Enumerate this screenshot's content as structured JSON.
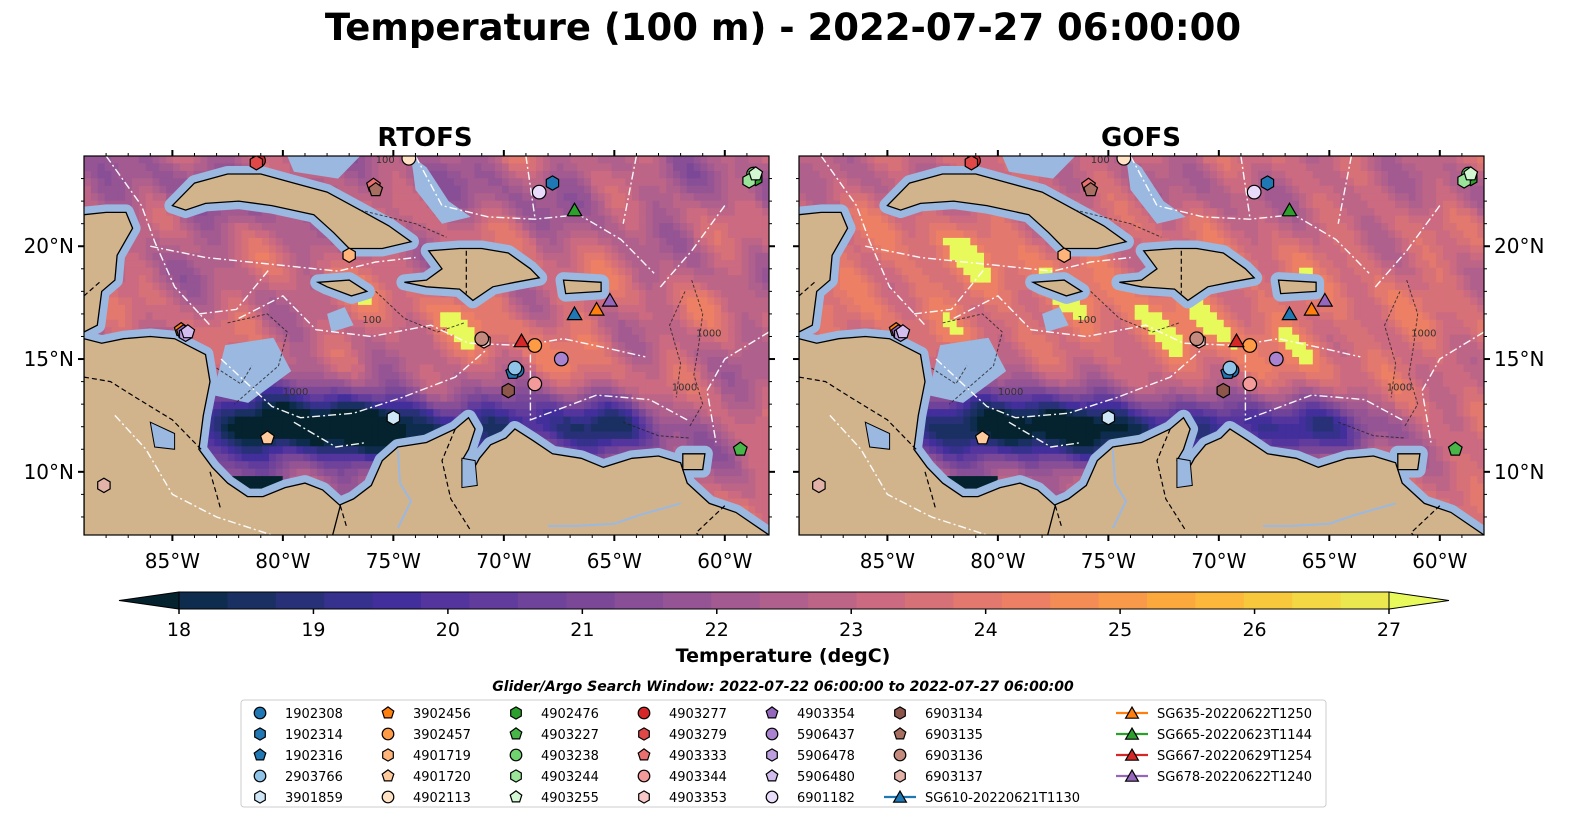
{
  "title": "Temperature (100 m) - 2022-07-27 06:00:00",
  "panels": [
    {
      "title": "RTOFS",
      "model": "rtofs"
    },
    {
      "title": "GOFS",
      "model": "gofs"
    }
  ],
  "axes": {
    "lon_ticks": [
      -85,
      -80,
      -75,
      -70,
      -65,
      -60
    ],
    "lon_tick_labels": [
      "85°W",
      "80°W",
      "75°W",
      "70°W",
      "65°W",
      "60°W"
    ],
    "lat_ticks": [
      10,
      15,
      20
    ],
    "lat_tick_labels": [
      "10°N",
      "15°N",
      "20°N"
    ],
    "lon_range": [
      -89,
      -58
    ],
    "lat_range": [
      7.2,
      24.0
    ]
  },
  "colorbar": {
    "label": "Temperature (degC)",
    "min": 18,
    "max": 27,
    "step": 0.5,
    "ticks": [
      18,
      19,
      20,
      21,
      22,
      23,
      24,
      25,
      26,
      27
    ],
    "tick_labels": [
      "18",
      "19",
      "20",
      "21",
      "22",
      "23",
      "24",
      "25",
      "26",
      "27"
    ],
    "extend": "both",
    "colormap": "thermal",
    "colors": [
      "#04232e",
      "#0e2c4d",
      "#1a3062",
      "#283177",
      "#35318c",
      "#432f9b",
      "#53359d",
      "#613c9c",
      "#6f439a",
      "#7b4898",
      "#884f97",
      "#955494",
      "#a35a91",
      "#b0608c",
      "#bd6587",
      "#cb6a80",
      "#d77178",
      "#e3786f",
      "#ed8064",
      "#f48c56",
      "#f89a49",
      "#fba83d",
      "#fbb83a",
      "#f8c83c",
      "#f3d843",
      "#ebe84f",
      "#e8fa5b"
    ]
  },
  "search_window": "Glider/Argo Search Window: 2022-07-22 06:00:00 to 2022-07-27 06:00:00",
  "map_colors": {
    "land": "#d2b48c",
    "shelf": "#9ab8e0",
    "coast": "#000000",
    "eez": "#ffffff"
  },
  "contour_labels": [
    "100",
    "1000"
  ],
  "legend": {
    "argo": [
      {
        "id": "1902308",
        "marker": "circle",
        "color": "#1f77b4"
      },
      {
        "id": "1902314",
        "marker": "hexagon",
        "color": "#1f77b4"
      },
      {
        "id": "1902316",
        "marker": "pentagon",
        "color": "#1f77b4"
      },
      {
        "id": "2903766",
        "marker": "circle",
        "color": "#8fc3e8"
      },
      {
        "id": "3901859",
        "marker": "hexagon",
        "color": "#cfe6f6"
      },
      {
        "id": "3902456",
        "marker": "pentagon",
        "color": "#ff7f0e"
      },
      {
        "id": "3902457",
        "marker": "circle",
        "color": "#ff9a45"
      },
      {
        "id": "4901719",
        "marker": "hexagon",
        "color": "#ffb47a"
      },
      {
        "id": "4901720",
        "marker": "pentagon",
        "color": "#ffcb9c"
      },
      {
        "id": "4902113",
        "marker": "circle",
        "color": "#ffe2c4"
      },
      {
        "id": "4902476",
        "marker": "hexagon",
        "color": "#2ca02c"
      },
      {
        "id": "4903227",
        "marker": "pentagon",
        "color": "#48b548"
      },
      {
        "id": "4903238",
        "marker": "circle",
        "color": "#6fd36f"
      },
      {
        "id": "4903244",
        "marker": "hexagon",
        "color": "#9be59b"
      },
      {
        "id": "4903255",
        "marker": "pentagon",
        "color": "#d2f7d2"
      },
      {
        "id": "4903277",
        "marker": "circle",
        "color": "#d62728"
      },
      {
        "id": "4903279",
        "marker": "hexagon",
        "color": "#e04848"
      },
      {
        "id": "4903333",
        "marker": "pentagon",
        "color": "#ea6f6f"
      },
      {
        "id": "4903344",
        "marker": "circle",
        "color": "#f39a9a"
      },
      {
        "id": "4903353",
        "marker": "hexagon",
        "color": "#f8c7c7"
      },
      {
        "id": "4903354",
        "marker": "pentagon",
        "color": "#9467bd"
      },
      {
        "id": "5906437",
        "marker": "circle",
        "color": "#a983d0"
      },
      {
        "id": "5906478",
        "marker": "hexagon",
        "color": "#bd9fe0"
      },
      {
        "id": "5906480",
        "marker": "pentagon",
        "color": "#d3bdef"
      },
      {
        "id": "6901182",
        "marker": "circle",
        "color": "#e9dcfb"
      },
      {
        "id": "6903134",
        "marker": "hexagon",
        "color": "#8c564b"
      },
      {
        "id": "6903135",
        "marker": "pentagon",
        "color": "#a86e62"
      },
      {
        "id": "6903136",
        "marker": "circle",
        "color": "#c48a7e"
      },
      {
        "id": "6903137",
        "marker": "hexagon",
        "color": "#e2b2a8"
      }
    ],
    "gliders": [
      {
        "id": "SG610-20220621T1130",
        "color": "#1f77b4"
      },
      {
        "id": "SG635-20220622T1250",
        "color": "#ff7f0e"
      },
      {
        "id": "SG665-20220623T1144",
        "color": "#2ca02c"
      },
      {
        "id": "SG667-20220629T1254",
        "color": "#d62728"
      },
      {
        "id": "SG678-20220622T1240",
        "color": "#9467bd"
      }
    ]
  },
  "chart_data": {
    "type": "heatmap",
    "title": "Temperature (100 m) - 2022-07-27 06:00:00",
    "subplots": [
      "RTOFS",
      "GOFS"
    ],
    "variable": "Temperature (100 m)",
    "units": "degC",
    "color_range": [
      18,
      27
    ],
    "xlim": [
      -89,
      -58
    ],
    "ylim": [
      7.2,
      24.0
    ],
    "argo_floats": [
      {
        "id": "1902308",
        "lon": -69.4,
        "lat": 14.5
      },
      {
        "id": "1902314",
        "lon": -67.8,
        "lat": 22.8
      },
      {
        "id": "1902316",
        "lon": -69.6,
        "lat": 14.4
      },
      {
        "id": "2903766",
        "lon": -69.5,
        "lat": 14.6
      },
      {
        "id": "3901859",
        "lon": -75.0,
        "lat": 12.4
      },
      {
        "id": "3902456",
        "lon": -84.6,
        "lat": 16.3
      },
      {
        "id": "3902457",
        "lon": -68.6,
        "lat": 15.6
      },
      {
        "id": "4901719",
        "lon": -77.0,
        "lat": 19.6
      },
      {
        "id": "4901720",
        "lon": -80.7,
        "lat": 11.5
      },
      {
        "id": "4902113",
        "lon": -74.3,
        "lat": 23.9
      },
      {
        "id": "4902476",
        "lon": -58.6,
        "lat": 23.0
      },
      {
        "id": "4903227",
        "lon": -59.3,
        "lat": 11.0
      },
      {
        "id": "4903238",
        "lon": -58.7,
        "lat": 23.2
      },
      {
        "id": "4903244",
        "lon": -58.9,
        "lat": 22.9
      },
      {
        "id": "4903255",
        "lon": -58.6,
        "lat": 23.2
      },
      {
        "id": "4903277",
        "lon": -81.1,
        "lat": 23.8
      },
      {
        "id": "4903279",
        "lon": -81.2,
        "lat": 23.7
      },
      {
        "id": "4903333",
        "lon": -75.9,
        "lat": 22.7
      },
      {
        "id": "4903344",
        "lon": -68.6,
        "lat": 13.9
      },
      {
        "id": "4903353",
        "lon": -70.9,
        "lat": 15.8
      },
      {
        "id": "4903354",
        "lon": -84.5,
        "lat": 16.2
      },
      {
        "id": "5906437",
        "lon": -67.4,
        "lat": 15.0
      },
      {
        "id": "5906478",
        "lon": -84.4,
        "lat": 16.1
      },
      {
        "id": "5906480",
        "lon": -84.3,
        "lat": 16.2
      },
      {
        "id": "6901182",
        "lon": -68.4,
        "lat": 22.4
      },
      {
        "id": "6903134",
        "lon": -69.8,
        "lat": 13.6
      },
      {
        "id": "6903135",
        "lon": -75.8,
        "lat": 22.5
      },
      {
        "id": "6903136",
        "lon": -71.0,
        "lat": 15.9
      },
      {
        "id": "6903137",
        "lon": -88.1,
        "lat": 9.4
      }
    ],
    "gliders": [
      {
        "id": "SG610-20220621T1130",
        "lon": -66.8,
        "lat": 17.0
      },
      {
        "id": "SG635-20220622T1250",
        "lon": -65.8,
        "lat": 17.2
      },
      {
        "id": "SG665-20220623T1144",
        "lon": -66.8,
        "lat": 21.6
      },
      {
        "id": "SG667-20220629T1254",
        "lon": -69.2,
        "lat": 15.8
      },
      {
        "id": "SG678-20220622T1240",
        "lon": -65.2,
        "lat": 17.6
      }
    ]
  }
}
